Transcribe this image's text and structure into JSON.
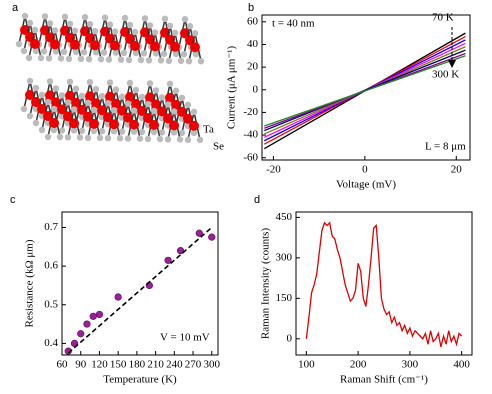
{
  "structure": {
    "panel_label": "a",
    "atom_labels": [
      "Ta",
      "Se"
    ]
  },
  "chart_data": [
    {
      "type": "line",
      "panel_label": "b",
      "xlabel": "Voltage (mV)",
      "ylabel": "Current (μA μm⁻¹)",
      "annotations": [
        "t = 40 nm",
        "70 K",
        "300 K",
        "L = 8 μm"
      ],
      "x": [
        -22,
        22
      ],
      "series": [
        {
          "color": "#000000",
          "values": [
            -52,
            50
          ]
        },
        {
          "color": "#ff0000",
          "values": [
            -48,
            47
          ]
        },
        {
          "color": "#0000ff",
          "values": [
            -45,
            44
          ]
        },
        {
          "color": "#ff00ff",
          "values": [
            -42,
            41
          ]
        },
        {
          "color": "#808000",
          "values": [
            -39,
            38
          ]
        },
        {
          "color": "#000080",
          "values": [
            -36,
            35
          ]
        },
        {
          "color": "#8b008b",
          "values": [
            -34,
            32
          ]
        },
        {
          "color": "#228b22",
          "values": [
            -32,
            30
          ]
        }
      ],
      "xlim": [
        -22.5,
        23
      ],
      "xticks": [
        -20,
        0,
        20
      ],
      "ylim": [
        -62,
        66
      ],
      "yticks": [
        -60,
        -40,
        -20,
        0,
        20,
        40,
        60
      ]
    },
    {
      "type": "scatter",
      "panel_label": "c",
      "xlabel": "Temperature (K)",
      "ylabel": "Resistance (kΩ μm)",
      "annotations": [
        "V = 10 mV"
      ],
      "series": [
        {
          "type": "scatter",
          "color": "#9b1f9b",
          "x": [
            70,
            80,
            90,
            100,
            110,
            120,
            150,
            200,
            230,
            250,
            280,
            300
          ],
          "values": [
            0.38,
            0.4,
            0.425,
            0.45,
            0.47,
            0.475,
            0.52,
            0.55,
            0.615,
            0.64,
            0.685,
            0.675
          ]
        },
        {
          "type": "line",
          "dashed": true,
          "color": "#000000",
          "x": [
            70,
            300
          ],
          "values": [
            0.375,
            0.7
          ]
        }
      ],
      "xlim": [
        60,
        310
      ],
      "xticks": [
        60,
        90,
        120,
        150,
        180,
        210,
        240,
        270,
        300
      ],
      "ylim": [
        0.37,
        0.74
      ],
      "yticks": [
        0.4,
        0.5,
        0.6,
        0.7
      ]
    },
    {
      "type": "line",
      "panel_label": "d",
      "xlabel": "Raman Shift (cm⁻¹)",
      "ylabel": "Raman Intensity (counts)",
      "annotations": [],
      "x": [
        100,
        105,
        110,
        115,
        120,
        125,
        130,
        135,
        140,
        145,
        150,
        155,
        160,
        165,
        170,
        175,
        180,
        185,
        190,
        195,
        200,
        205,
        210,
        215,
        220,
        225,
        230,
        235,
        240,
        245,
        250,
        255,
        260,
        265,
        270,
        275,
        280,
        285,
        290,
        295,
        300,
        305,
        310,
        315,
        320,
        325,
        330,
        335,
        340,
        345,
        350,
        355,
        360,
        365,
        370,
        375,
        380,
        385,
        390,
        395,
        400
      ],
      "series": [
        {
          "color": "#e00000",
          "values": [
            0,
            80,
            170,
            200,
            240,
            320,
            400,
            430,
            420,
            430,
            380,
            370,
            330,
            300,
            250,
            200,
            170,
            140,
            150,
            180,
            280,
            250,
            150,
            120,
            200,
            300,
            410,
            420,
            300,
            150,
            110,
            90,
            100,
            60,
            80,
            50,
            60,
            30,
            50,
            20,
            40,
            10,
            30,
            20,
            10,
            0,
            20,
            -20,
            30,
            -10,
            0,
            20,
            -30,
            10,
            -20,
            30,
            -10,
            10,
            -20,
            20,
            10
          ]
        }
      ],
      "xlim": [
        80,
        420
      ],
      "xticks": [
        100,
        200,
        300,
        400
      ],
      "ylim": [
        -60,
        470
      ],
      "yticks": [
        0,
        150,
        300,
        450
      ]
    }
  ]
}
